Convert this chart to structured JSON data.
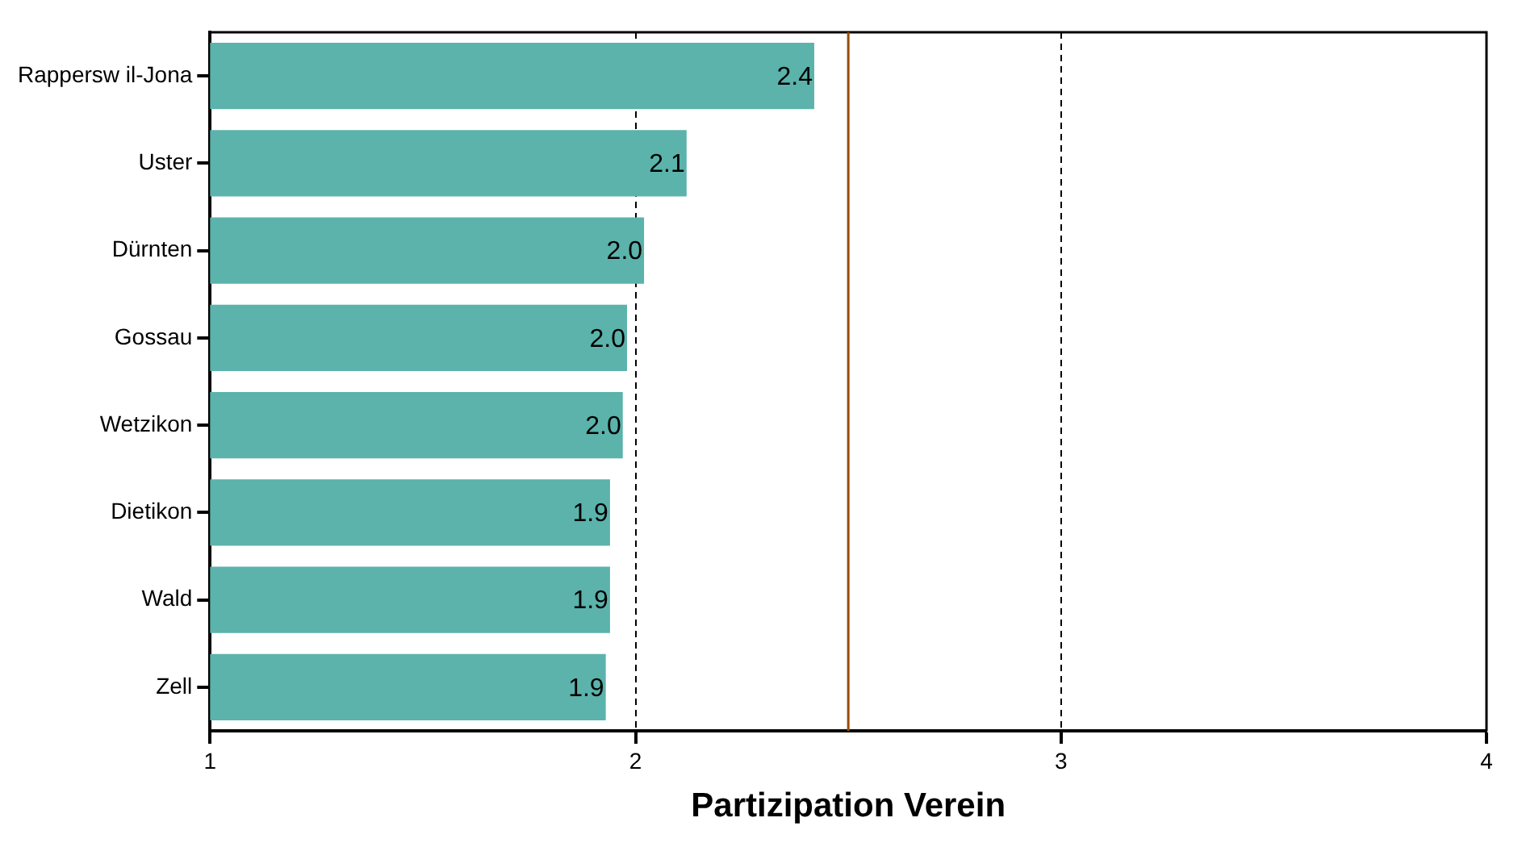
{
  "chart_data": {
    "type": "bar",
    "orientation": "horizontal",
    "xlabel": "Partizipation Verein",
    "categories": [
      "Rappersw il-Jona",
      "Uster",
      "Dürnten",
      "Gossau",
      "Wetzikon",
      "Dietikon",
      "Wald",
      "Zell"
    ],
    "values": [
      2.42,
      2.12,
      2.02,
      1.98,
      1.97,
      1.94,
      1.94,
      1.93
    ],
    "value_labels": [
      "2.4",
      "2.1",
      "2.0",
      "2.0",
      "2.0",
      "1.9",
      "1.9",
      "1.9"
    ],
    "color": "#5bb3ab",
    "xlim": [
      1,
      4
    ],
    "xticks": [
      1,
      2,
      3,
      4
    ],
    "grid": "x",
    "ref_lines": [
      {
        "axis": "x",
        "value": 2.5,
        "color": "#994c00"
      }
    ]
  }
}
